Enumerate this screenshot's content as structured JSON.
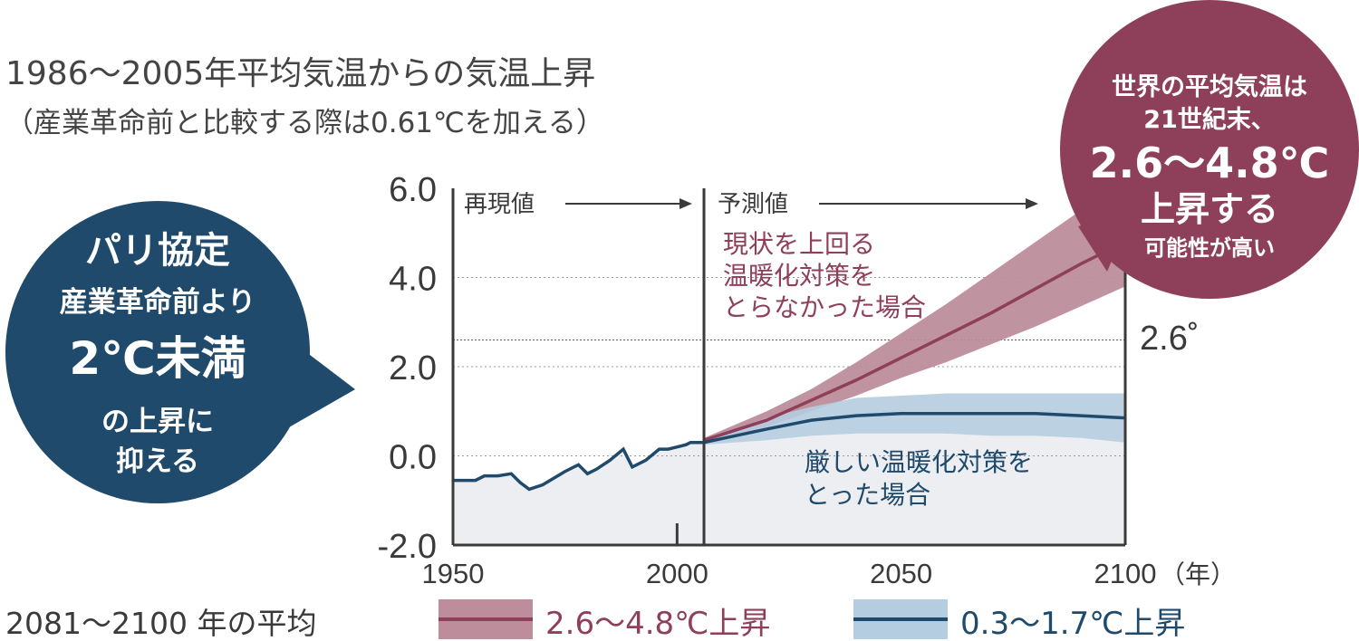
{
  "title": "1986～2005年平均気温からの気温上昇",
  "subtitle": "（産業革命前と比較する際は0.61℃を加える）",
  "paris_bubble": {
    "line1": "パリ協定",
    "line2": "産業革命前より",
    "line3": "2℃未満",
    "line4": "の上昇に",
    "line5": "抑える"
  },
  "world_bubble": {
    "line1": "世界の平均気温は",
    "line2": "21世紀末、",
    "line3": "2.6～4.8℃",
    "line4": "上昇する",
    "line5": "可能性が高い"
  },
  "colors": {
    "high": "#8e3f59",
    "high_band": "#bd8d9c",
    "low": "#1f4a6c",
    "low_band": "#b5cde0",
    "hist_fill": "#eceef2",
    "text": "#3a3a3a"
  },
  "chart_data": {
    "type": "line",
    "x_unit": "（年）",
    "xlim": [
      1950,
      2100
    ],
    "ylim": [
      -2.0,
      6.0
    ],
    "x_ticks": [
      1950,
      2000,
      2050,
      2100
    ],
    "y_ticks": [
      "-2.0",
      "0.0",
      "2.0",
      "4.0",
      "6.0"
    ],
    "y_tick_values": [
      -2,
      0,
      2,
      4,
      6
    ],
    "reference_line": {
      "value": 2.6,
      "label": "2.6˚"
    },
    "divider_year": 2006,
    "section_labels": {
      "historical": "再現値",
      "projection": "予測値"
    },
    "historical": {
      "x": [
        1950,
        1955,
        1957,
        1960,
        1963,
        1965,
        1967,
        1970,
        1975,
        1978,
        1980,
        1982,
        1985,
        1988,
        1990,
        1993,
        1996,
        1998,
        2000,
        2002,
        2003,
        2006
      ],
      "y": [
        -0.55,
        -0.55,
        -0.45,
        -0.45,
        -0.4,
        -0.6,
        -0.75,
        -0.65,
        -0.35,
        -0.2,
        -0.4,
        -0.3,
        -0.1,
        0.15,
        -0.25,
        -0.1,
        0.15,
        0.15,
        0.2,
        0.25,
        0.3,
        0.3
      ]
    },
    "series": [
      {
        "name": "",
        "label": "現状を上回る温暖化対策をとらなかった場合",
        "x": [
          2006,
          2020,
          2030,
          2040,
          2050,
          2060,
          2070,
          2080,
          2090,
          2100
        ],
        "y": [
          0.35,
          0.8,
          1.25,
          1.7,
          2.2,
          2.7,
          3.2,
          3.75,
          4.3,
          4.8
        ],
        "lower": [
          0.3,
          0.65,
          1.0,
          1.35,
          1.75,
          2.1,
          2.5,
          2.9,
          3.35,
          3.8
        ],
        "upper": [
          0.4,
          1.0,
          1.5,
          2.1,
          2.75,
          3.4,
          4.1,
          4.8,
          5.5,
          6.1
        ]
      },
      {
        "name": "",
        "label": "厳しい温暖化対策をとった場合",
        "x": [
          2006,
          2020,
          2030,
          2040,
          2050,
          2060,
          2070,
          2080,
          2090,
          2100
        ],
        "y": [
          0.3,
          0.6,
          0.8,
          0.9,
          0.95,
          0.95,
          0.95,
          0.95,
          0.9,
          0.85
        ],
        "lower": [
          0.25,
          0.35,
          0.45,
          0.5,
          0.5,
          0.5,
          0.45,
          0.45,
          0.4,
          0.3
        ],
        "upper": [
          0.35,
          0.85,
          1.1,
          1.3,
          1.35,
          1.4,
          1.4,
          1.4,
          1.4,
          1.4
        ]
      }
    ],
    "legend": {
      "title": "2081～2100 年の平均",
      "high": "2.6～4.8℃上昇",
      "low": "0.3～1.7℃上昇"
    }
  }
}
